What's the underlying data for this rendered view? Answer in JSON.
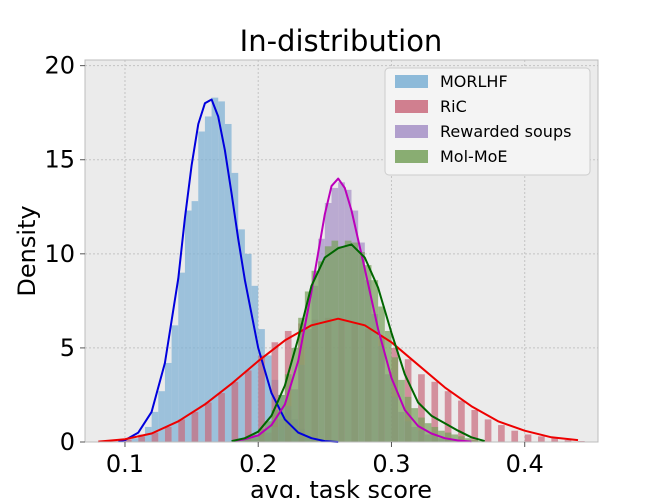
{
  "chart_data": {
    "type": "histogram+kde",
    "title": "In-distribution",
    "xlabel": "avg. task score",
    "ylabel": "Density",
    "xlim": [
      0.07,
      0.455
    ],
    "ylim": [
      0,
      20.3
    ],
    "xticks": [
      0.1,
      0.2,
      0.3,
      0.4
    ],
    "xtick_labels": [
      "0.1",
      "0.2",
      "0.3",
      "0.4"
    ],
    "yticks": [
      0,
      5,
      10,
      15,
      20
    ],
    "ytick_labels": [
      "0",
      "5",
      "10",
      "15",
      "20"
    ],
    "grid": true,
    "legend_position": "top-right",
    "bin_width": 0.005,
    "series": [
      {
        "name": "MORLHF",
        "hist_color": "#7aafd4",
        "kde_color": "#0000dd",
        "bin_starts": [
          0.095,
          0.1,
          0.105,
          0.11,
          0.115,
          0.12,
          0.125,
          0.13,
          0.135,
          0.14,
          0.145,
          0.15,
          0.155,
          0.16,
          0.165,
          0.17,
          0.175,
          0.18,
          0.185,
          0.19,
          0.195,
          0.2,
          0.205,
          0.21,
          0.215,
          0.22,
          0.225,
          0.23,
          0.235,
          0.24
        ],
        "hist": [
          0.05,
          0.1,
          0.2,
          0.4,
          0.8,
          1.6,
          2.7,
          4.2,
          6.2,
          9.0,
          12.3,
          12.8,
          16.5,
          17.3,
          18.3,
          18.1,
          16.9,
          14.3,
          11.3,
          10.0,
          8.3,
          6.0,
          4.6,
          3.3,
          2.5,
          1.7,
          1.2,
          0.7,
          0.3,
          0.1
        ],
        "kde_x": [
          0.095,
          0.1,
          0.11,
          0.12,
          0.13,
          0.14,
          0.145,
          0.15,
          0.155,
          0.16,
          0.165,
          0.17,
          0.175,
          0.18,
          0.185,
          0.19,
          0.2,
          0.21,
          0.22,
          0.23,
          0.24,
          0.25,
          0.26
        ],
        "kde_y": [
          0.05,
          0.1,
          0.5,
          1.6,
          4.2,
          8.7,
          11.9,
          14.7,
          16.9,
          18.0,
          18.2,
          17.3,
          15.5,
          13.2,
          10.8,
          8.6,
          5.0,
          2.6,
          1.2,
          0.5,
          0.2,
          0.05,
          0.0
        ]
      },
      {
        "name": "RiC",
        "hist_color": "#c96a7c",
        "kde_color": "#ee0000",
        "bin_starts": [
          0.08,
          0.09,
          0.1,
          0.11,
          0.12,
          0.13,
          0.14,
          0.15,
          0.16,
          0.17,
          0.18,
          0.19,
          0.2,
          0.21,
          0.22,
          0.23,
          0.24,
          0.25,
          0.26,
          0.27,
          0.28,
          0.29,
          0.3,
          0.31,
          0.32,
          0.33,
          0.34,
          0.35,
          0.36,
          0.37,
          0.38,
          0.39,
          0.4,
          0.41,
          0.42,
          0.43,
          0.44
        ],
        "hist": [
          0.02,
          0.05,
          0.15,
          0.3,
          0.5,
          0.8,
          1.2,
          1.6,
          2.1,
          2.6,
          3.2,
          3.8,
          4.6,
          5.3,
          5.9,
          6.3,
          6.5,
          6.6,
          6.5,
          6.3,
          6.0,
          5.6,
          5.0,
          4.4,
          3.6,
          3.2,
          2.7,
          2.2,
          1.7,
          1.2,
          0.9,
          0.6,
          0.4,
          0.3,
          0.2,
          0.1,
          0.05
        ],
        "kde_x": [
          0.08,
          0.1,
          0.12,
          0.14,
          0.16,
          0.18,
          0.2,
          0.22,
          0.24,
          0.26,
          0.28,
          0.3,
          0.32,
          0.34,
          0.36,
          0.38,
          0.4,
          0.42,
          0.44
        ],
        "kde_y": [
          0.02,
          0.15,
          0.45,
          1.1,
          2.0,
          3.1,
          4.3,
          5.4,
          6.2,
          6.55,
          6.2,
          5.3,
          4.1,
          2.9,
          1.9,
          1.1,
          0.6,
          0.25,
          0.1
        ]
      },
      {
        "name": "Rewarded soups",
        "hist_color": "#a58fc6",
        "kde_color": "#bb00bb",
        "bin_starts": [
          0.18,
          0.185,
          0.19,
          0.195,
          0.2,
          0.205,
          0.21,
          0.215,
          0.22,
          0.225,
          0.23,
          0.235,
          0.24,
          0.245,
          0.25,
          0.255,
          0.26,
          0.265,
          0.27,
          0.275,
          0.28,
          0.285,
          0.29,
          0.295,
          0.3,
          0.305,
          0.31,
          0.315,
          0.32,
          0.325,
          0.33,
          0.335,
          0.34,
          0.345,
          0.35,
          0.355
        ],
        "hist": [
          0.05,
          0.1,
          0.15,
          0.2,
          0.3,
          0.5,
          0.8,
          1.2,
          1.9,
          2.8,
          4.1,
          6.0,
          8.3,
          10.8,
          12.7,
          13.5,
          13.8,
          13.4,
          12.3,
          10.6,
          8.6,
          6.8,
          5.1,
          3.6,
          2.4,
          1.6,
          1.1,
          0.8,
          0.6,
          0.4,
          0.3,
          0.2,
          0.15,
          0.1,
          0.05,
          0.02
        ],
        "kde_x": [
          0.18,
          0.19,
          0.2,
          0.21,
          0.22,
          0.23,
          0.24,
          0.25,
          0.255,
          0.26,
          0.265,
          0.27,
          0.28,
          0.29,
          0.3,
          0.31,
          0.32,
          0.33,
          0.34,
          0.35,
          0.36
        ],
        "kde_y": [
          0.05,
          0.15,
          0.35,
          0.9,
          2.0,
          4.3,
          8.0,
          12.1,
          13.6,
          14.0,
          13.5,
          12.3,
          9.2,
          6.0,
          3.4,
          1.7,
          0.85,
          0.45,
          0.2,
          0.08,
          0.02
        ]
      },
      {
        "name": "Mol-MoE",
        "hist_color": "#76a05a",
        "kde_color": "#006600",
        "bin_starts": [
          0.18,
          0.185,
          0.19,
          0.195,
          0.2,
          0.205,
          0.21,
          0.215,
          0.22,
          0.225,
          0.23,
          0.235,
          0.24,
          0.245,
          0.25,
          0.255,
          0.26,
          0.265,
          0.27,
          0.275,
          0.28,
          0.285,
          0.29,
          0.295,
          0.3,
          0.305,
          0.31,
          0.315,
          0.32,
          0.325,
          0.33,
          0.335,
          0.34,
          0.345,
          0.35,
          0.355,
          0.36,
          0.365
        ],
        "hist": [
          0.05,
          0.1,
          0.2,
          0.4,
          0.7,
          1.1,
          1.7,
          2.5,
          3.6,
          5.0,
          6.6,
          8.0,
          9.1,
          9.6,
          10.4,
          10.7,
          10.4,
          10.7,
          10.6,
          10.1,
          9.4,
          8.6,
          7.2,
          5.9,
          4.5,
          3.3,
          2.4,
          1.8,
          1.3,
          1.0,
          0.8,
          0.6,
          0.5,
          0.4,
          0.3,
          0.2,
          0.1,
          0.05
        ],
        "kde_x": [
          0.18,
          0.19,
          0.2,
          0.21,
          0.22,
          0.23,
          0.24,
          0.25,
          0.26,
          0.27,
          0.28,
          0.29,
          0.3,
          0.31,
          0.32,
          0.33,
          0.34,
          0.35,
          0.36,
          0.37
        ],
        "kde_y": [
          0.05,
          0.2,
          0.55,
          1.4,
          3.0,
          5.5,
          8.3,
          9.8,
          10.3,
          10.5,
          9.8,
          8.2,
          5.8,
          3.6,
          2.1,
          1.4,
          1.0,
          0.6,
          0.25,
          0.05
        ]
      }
    ]
  }
}
